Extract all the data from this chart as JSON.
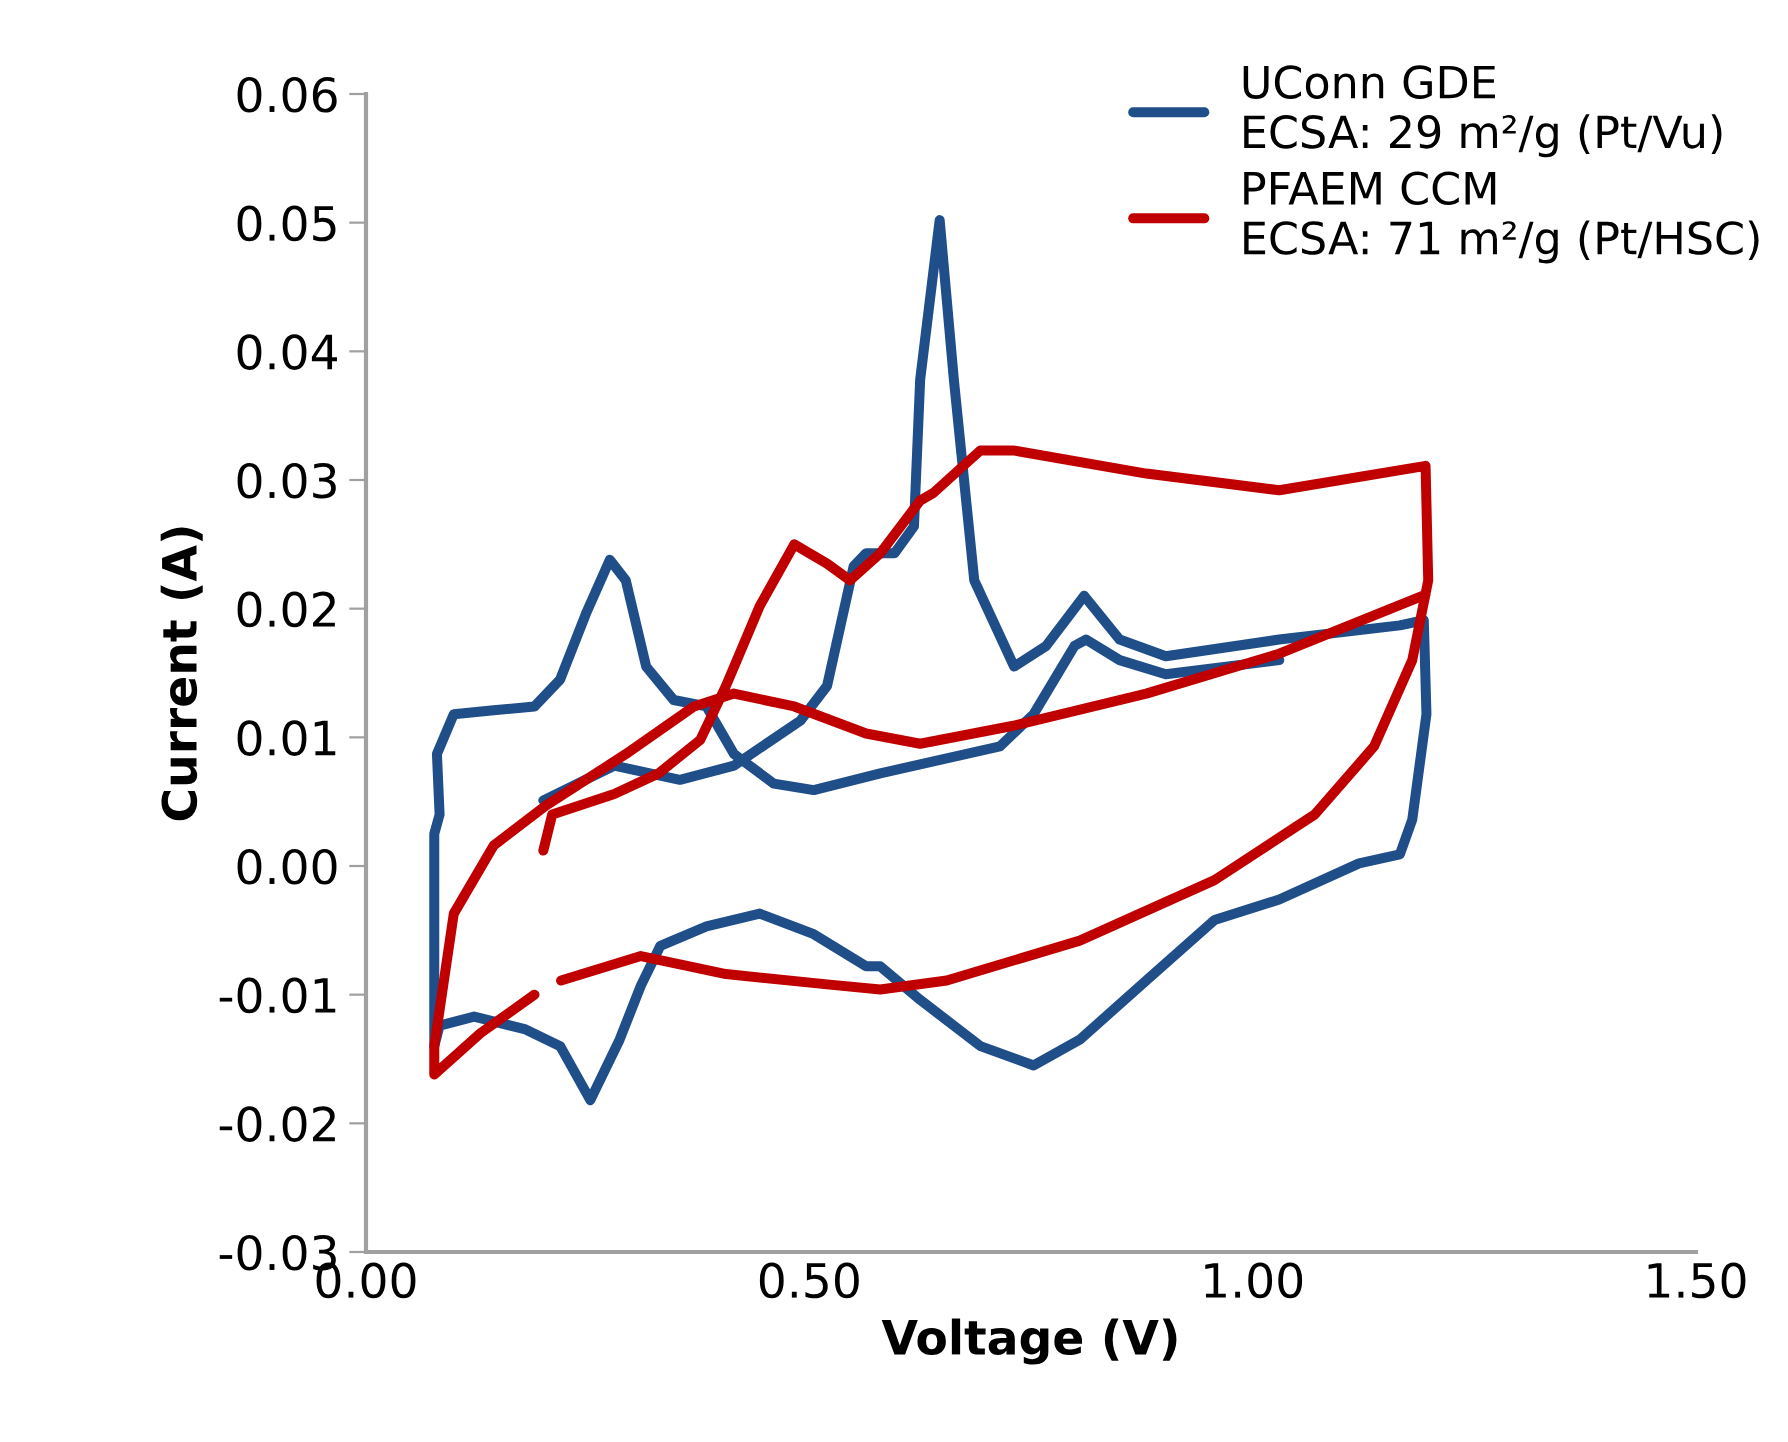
{
  "chart_data": {
    "type": "line",
    "xlabel": "Voltage (V)",
    "ylabel": "Current (A)",
    "xlim": [
      0,
      1.5
    ],
    "xticks": [
      {
        "value": 0,
        "label": "0.00"
      },
      {
        "value": 0.5,
        "label": "0.50"
      },
      {
        "value": 1,
        "label": "1.00"
      },
      {
        "value": 1.5,
        "label": "1.50"
      }
    ],
    "ylim": [
      -0.03,
      0.06
    ],
    "yticks": [
      {
        "value": -0.03,
        "label": "-0.03"
      },
      {
        "value": -0.02,
        "label": "-0.02"
      },
      {
        "value": -0.01,
        "label": "-0.01"
      },
      {
        "value": 0,
        "label": "0.00"
      },
      {
        "value": 0.01,
        "label": "0.01"
      },
      {
        "value": 0.02,
        "label": "0.02"
      },
      {
        "value": 0.03,
        "label": "0.03"
      },
      {
        "value": 0.04,
        "label": "0.04"
      },
      {
        "value": 0.05,
        "label": "0.05"
      },
      {
        "value": 0.06,
        "label": "0.06"
      }
    ],
    "grid": false,
    "legend": "top right",
    "marker": "none",
    "line_style": "solid",
    "series": [
      {
        "name": "UConn GDE\nECSA: 29 m²/g (Pt/Vu)",
        "color": "#1f4e89",
        "x": [
          0.2,
          0.28,
          0.354,
          0.415,
          0.49,
          0.52,
          0.55,
          0.564,
          0.596,
          0.618,
          0.625,
          0.647,
          0.663,
          0.686,
          0.731,
          0.767,
          0.81,
          0.85,
          0.902,
          1.03,
          1.166,
          1.193,
          1.196,
          1.18,
          1.166,
          1.12,
          1.03,
          0.957,
          0.88,
          0.805,
          0.753,
          0.693,
          0.625,
          0.58,
          0.564,
          0.505,
          0.444,
          0.384,
          0.332,
          0.31,
          0.286,
          0.253,
          0.219,
          0.18,
          0.122,
          0.083,
          0.077,
          0.077,
          0.083,
          0.08,
          0.099,
          0.144,
          0.19,
          0.219,
          0.248,
          0.275,
          0.293,
          0.316,
          0.347,
          0.384,
          0.415,
          0.46,
          0.505,
          0.58,
          0.715,
          0.753,
          0.799,
          0.812,
          0.85,
          0.902,
          1.03
        ],
        "values": [
          0.0051,
          0.0078,
          0.0067,
          0.0078,
          0.0113,
          0.014,
          0.0233,
          0.0243,
          0.0243,
          0.0264,
          0.0378,
          0.0502,
          0.0378,
          0.0222,
          0.0155,
          0.0171,
          0.021,
          0.0176,
          0.0163,
          0.0176,
          0.0187,
          0.0191,
          0.0118,
          0.0036,
          0.0009,
          0.0002,
          -0.0026,
          -0.0042,
          -0.0089,
          -0.0135,
          -0.0155,
          -0.014,
          -0.0104,
          -0.0078,
          -0.0078,
          -0.0053,
          -0.0037,
          -0.0047,
          -0.0062,
          -0.0093,
          -0.0135,
          -0.0182,
          -0.014,
          -0.0127,
          -0.0117,
          -0.0124,
          -0.014,
          0.0025,
          0.004,
          0.0087,
          0.0118,
          0.0121,
          0.0124,
          0.0145,
          0.0196,
          0.0238,
          0.0222,
          0.0155,
          0.0129,
          0.0124,
          0.0087,
          0.0064,
          0.0059,
          0.0072,
          0.0093,
          0.0118,
          0.0171,
          0.0176,
          0.016,
          0.0149,
          0.016
        ]
      },
      {
        "name": "PFAEM CCM\nECSA: 71 m²/g (Pt/HSC)",
        "color": "#c00000",
        "x": [
          0.2,
          0.21,
          0.28,
          0.33,
          0.377,
          0.406,
          0.444,
          0.483,
          0.52,
          0.546,
          0.58,
          0.625,
          0.64,
          0.693,
          0.73,
          0.88,
          1.03,
          1.195,
          1.198,
          1.18,
          1.137,
          1.07,
          0.957,
          0.805,
          0.655,
          0.58,
          0.52,
          0.406,
          0.31,
          0.22,
          0.205,
          0.19,
          0.129,
          0.077,
          0.077,
          0.099,
          0.144,
          0.203,
          0.293,
          0.37,
          0.415,
          0.483,
          0.564,
          0.625,
          0.73,
          0.88,
          1.03,
          1.195
        ],
        "values": [
          0.0012,
          0.004,
          0.0056,
          0.0072,
          0.0098,
          0.014,
          0.0202,
          0.025,
          0.0235,
          0.0222,
          0.0243,
          0.0284,
          0.029,
          0.0323,
          0.0323,
          0.0305,
          0.0292,
          0.0311,
          0.0222,
          0.016,
          0.0093,
          0.004,
          -0.0011,
          -0.0058,
          -0.0089,
          -0.0096,
          -0.0092,
          -0.0084,
          -0.007,
          -0.0089,
          null,
          -0.01,
          -0.013,
          -0.0162,
          -0.014,
          -0.0037,
          0.0016,
          0.0047,
          0.0087,
          0.0124,
          0.0134,
          0.0124,
          0.0103,
          0.0095,
          0.0109,
          0.0134,
          0.0165,
          0.0211
        ]
      }
    ]
  }
}
